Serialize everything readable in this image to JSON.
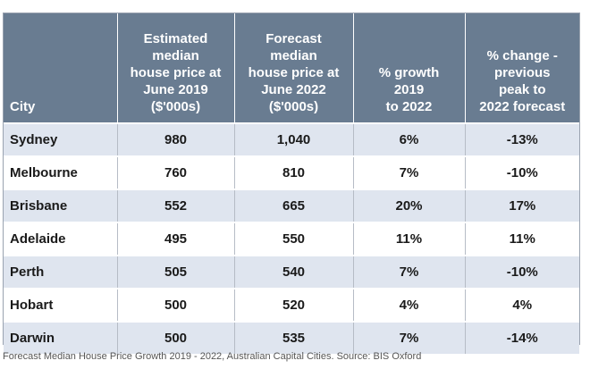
{
  "chart_data": {
    "type": "table",
    "columns": [
      "City",
      "Estimated median house price at June 2019 ($'000s)",
      "Forecast median house price at June 2022 ($'000s)",
      "% growth 2019 to 2022",
      "% change - previous peak to 2022 forecast"
    ],
    "header_lines": [
      [
        "City"
      ],
      [
        "Estimated",
        "median",
        "house price at",
        "June 2019",
        "($'000s)"
      ],
      [
        "Forecast",
        "median",
        "house price at",
        "June 2022",
        "($'000s)"
      ],
      [
        "% growth",
        "2019",
        "to 2022"
      ],
      [
        "% change -",
        "previous",
        "peak to",
        "2022 forecast"
      ]
    ],
    "rows": [
      [
        "Sydney",
        "980",
        "1,040",
        "6%",
        "-13%"
      ],
      [
        "Melbourne",
        "760",
        "810",
        "7%",
        "-10%"
      ],
      [
        "Brisbane",
        "552",
        "665",
        "20%",
        "17%"
      ],
      [
        "Adelaide",
        "495",
        "550",
        "11%",
        "11%"
      ],
      [
        "Perth",
        "505",
        "540",
        "7%",
        "-10%"
      ],
      [
        "Hobart",
        "500",
        "520",
        "4%",
        "4%"
      ],
      [
        "Darwin",
        "500",
        "535",
        "7%",
        "-14%"
      ]
    ]
  },
  "caption": "Forecast Median House Price Growth 2019 - 2022, Australian Capital Cities. Source: BIS Oxford",
  "colors": {
    "header_bg": "#697c91",
    "row_stripe": "#dfe5ef"
  }
}
